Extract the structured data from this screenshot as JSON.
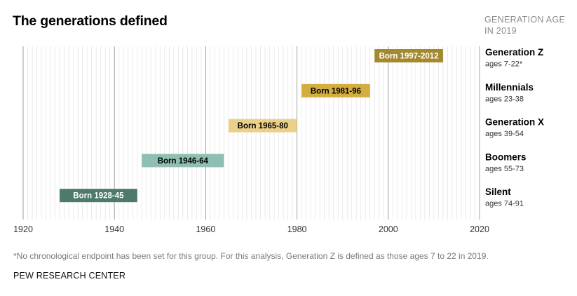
{
  "title": "The generations defined",
  "legend_header": "GENERATION AGE IN 2019",
  "note": "*No chronological endpoint has been set for this group. For this analysis, Generation Z is defined as those ages 7 to 22 in 2019.",
  "source": "PEW RESEARCH CENTER",
  "chart_data": {
    "type": "bar",
    "orientation": "horizontal-range",
    "xlim": [
      1920,
      2020
    ],
    "x_ticks": [
      1920,
      1940,
      1960,
      1980,
      2000,
      2020
    ],
    "grid": "vertical lines every year, darker every 20 years",
    "generations": [
      {
        "name": "Generation Z",
        "ages": "ages 7-22*",
        "start": 1997,
        "end": 2012,
        "label": "Born 1997-2012",
        "color": "#a48a2e",
        "label_color": "#ffffff"
      },
      {
        "name": "Millennials",
        "ages": "ages 23-38",
        "start": 1981,
        "end": 1996,
        "label": "Born 1981-96",
        "color": "#d3ad3f",
        "label_color": "#000000"
      },
      {
        "name": "Generation X",
        "ages": "ages 39-54",
        "start": 1965,
        "end": 1980,
        "label": "Born 1965-80",
        "color": "#ead089",
        "label_color": "#000000"
      },
      {
        "name": "Boomers",
        "ages": "ages 55-73",
        "start": 1946,
        "end": 1964,
        "label": "Born 1946-64",
        "color": "#8fbfb2",
        "label_color": "#000000"
      },
      {
        "name": "Silent",
        "ages": "ages 74-91",
        "start": 1928,
        "end": 1945,
        "label": "Born 1928-45",
        "color": "#4d7a69",
        "label_color": "#ffffff"
      }
    ]
  }
}
